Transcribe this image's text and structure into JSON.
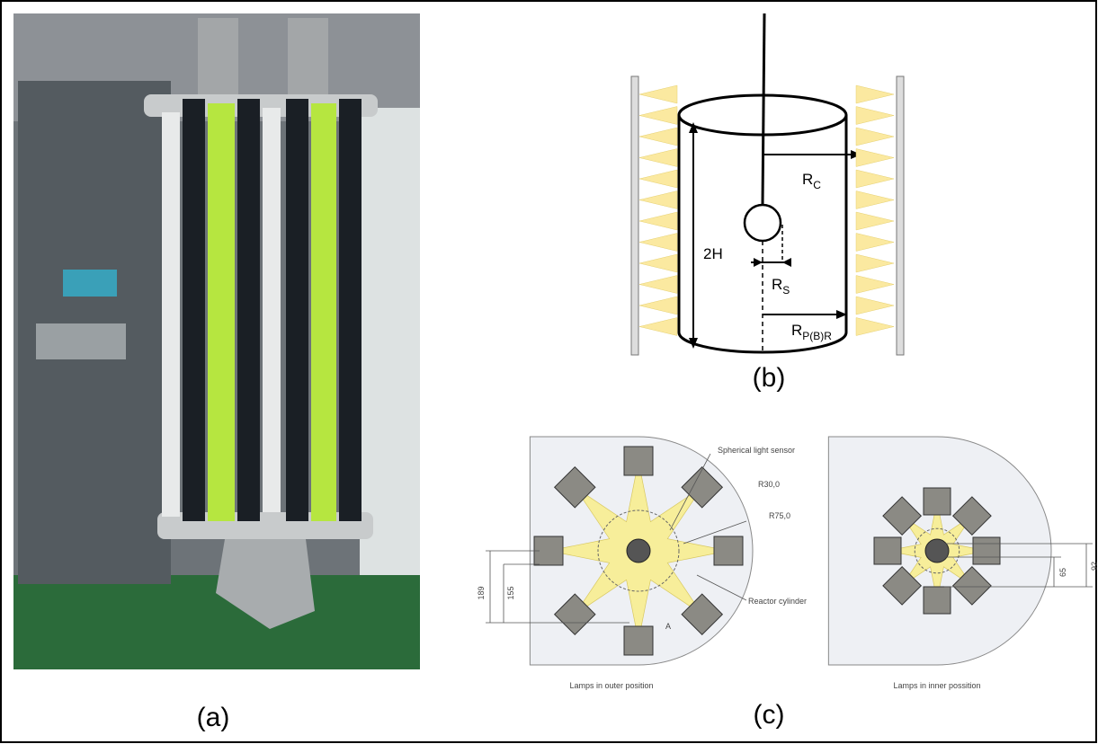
{
  "panels": {
    "a": {
      "label": "(a)"
    },
    "b": {
      "label": "(b)",
      "rc": {
        "main": "R",
        "sub": "C"
      },
      "height": "2H",
      "rs": {
        "main": "R",
        "sub": "S"
      },
      "rpbr": {
        "main": "R",
        "sub": "P(B)R"
      }
    },
    "c": {
      "label": "(c)",
      "sensor": "Spherical light sensor",
      "r30": "R30,0",
      "r75": "R75,0",
      "reactor": "Reactor cylinder",
      "dim189": "189",
      "dim155": "155",
      "section": "A",
      "dim65": "65",
      "dim92": "92",
      "outer_caption": "Lamps in outer position",
      "inner_caption": "Lamps in inner possition"
    }
  }
}
